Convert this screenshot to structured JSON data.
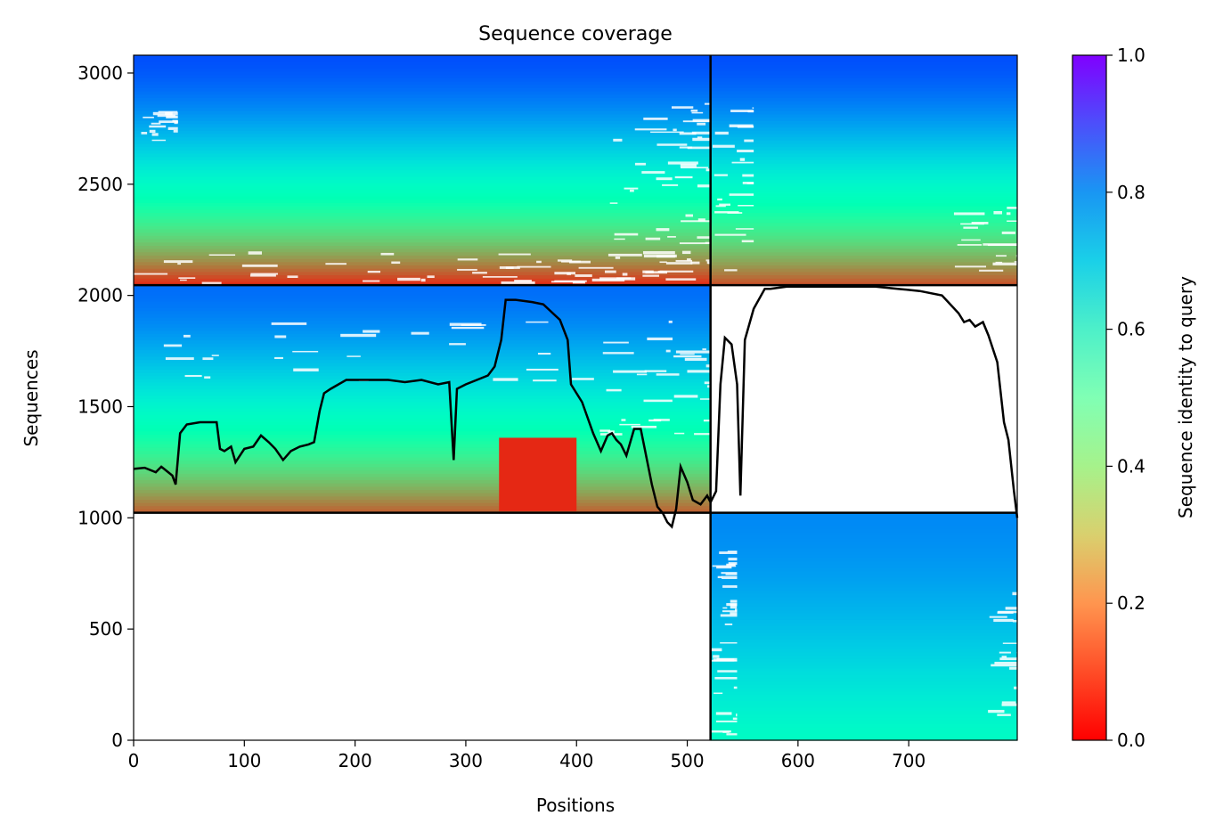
{
  "chart_data": {
    "type": "heatmap",
    "title": "Sequence coverage",
    "xlabel": "Positions",
    "ylabel": "Sequences",
    "xlim": [
      0,
      798
    ],
    "ylim": [
      0,
      3080
    ],
    "x_ticks": [
      0,
      100,
      200,
      300,
      400,
      500,
      600,
      700
    ],
    "y_ticks": [
      0,
      500,
      1000,
      1500,
      2000,
      2500,
      3000
    ],
    "colorbar": {
      "label": "Sequence identity to query",
      "range": [
        0.0,
        1.0
      ],
      "ticks": [
        0.0,
        0.2,
        0.4,
        0.6,
        0.8,
        1.0
      ],
      "tick_labels": [
        "0.0",
        "0.2",
        "0.4",
        "0.6",
        "0.8",
        "1.0"
      ],
      "colormap": "rainbow_r"
    },
    "chain_boundaries": {
      "x": [
        521
      ],
      "y": [
        1023,
        2046
      ]
    },
    "blocks": [
      {
        "x": [
          0,
          521
        ],
        "y": [
          2046,
          3080
        ],
        "identity_bottom": 0.05,
        "identity_top": 0.9
      },
      {
        "x": [
          521,
          798
        ],
        "y": [
          2046,
          3080
        ],
        "identity_bottom": 0.1,
        "identity_top": 0.9
      },
      {
        "x": [
          0,
          521
        ],
        "y": [
          1023,
          2046
        ],
        "identity_bottom": 0.12,
        "identity_top": 0.86
      },
      {
        "x": [
          521,
          798
        ],
        "y": [
          0,
          1023
        ],
        "identity_bottom": 0.55,
        "identity_top": 0.82
      }
    ],
    "red_patch": {
      "x": [
        330,
        400
      ],
      "y": [
        1030,
        1360
      ],
      "identity": 0.05
    },
    "coverage_line": {
      "name": "coverage",
      "color": "#000000",
      "x": [
        0,
        10,
        20,
        25,
        30,
        35,
        38,
        42,
        48,
        60,
        75,
        78,
        82,
        88,
        92,
        100,
        108,
        115,
        122,
        128,
        135,
        142,
        150,
        158,
        163,
        168,
        172,
        178,
        185,
        192,
        200,
        215,
        230,
        245,
        260,
        275,
        285,
        289,
        292,
        300,
        310,
        320,
        326,
        332,
        336,
        345,
        360,
        370,
        385,
        392,
        395,
        405,
        415,
        422,
        428,
        432,
        436,
        440,
        445,
        452,
        458,
        462,
        468,
        473,
        478,
        482,
        486,
        490,
        494,
        500,
        505,
        512,
        518,
        521,
        526,
        530,
        534,
        540,
        545,
        548,
        552,
        560,
        570,
        575,
        590,
        610,
        630,
        650,
        670,
        690,
        710,
        730,
        745,
        750,
        755,
        760,
        767,
        772,
        780,
        786,
        790,
        795,
        798
      ],
      "y": [
        1220,
        1225,
        1205,
        1230,
        1210,
        1190,
        1150,
        1380,
        1420,
        1430,
        1430,
        1310,
        1300,
        1320,
        1250,
        1310,
        1320,
        1370,
        1340,
        1310,
        1260,
        1300,
        1320,
        1330,
        1340,
        1480,
        1560,
        1580,
        1600,
        1620,
        1620,
        1620,
        1620,
        1610,
        1620,
        1600,
        1610,
        1260,
        1580,
        1600,
        1620,
        1640,
        1680,
        1800,
        1980,
        1980,
        1970,
        1960,
        1890,
        1800,
        1600,
        1520,
        1380,
        1300,
        1370,
        1380,
        1350,
        1330,
        1280,
        1400,
        1400,
        1300,
        1150,
        1050,
        1020,
        980,
        960,
        1040,
        1230,
        1160,
        1080,
        1060,
        1100,
        1070,
        1120,
        1600,
        1810,
        1780,
        1600,
        1100,
        1800,
        1940,
        2030,
        2030,
        2040,
        2040,
        2040,
        2040,
        2040,
        2030,
        2020,
        2000,
        1920,
        1880,
        1890,
        1860,
        1880,
        1820,
        1700,
        1430,
        1350,
        1120,
        1000
      ]
    }
  }
}
